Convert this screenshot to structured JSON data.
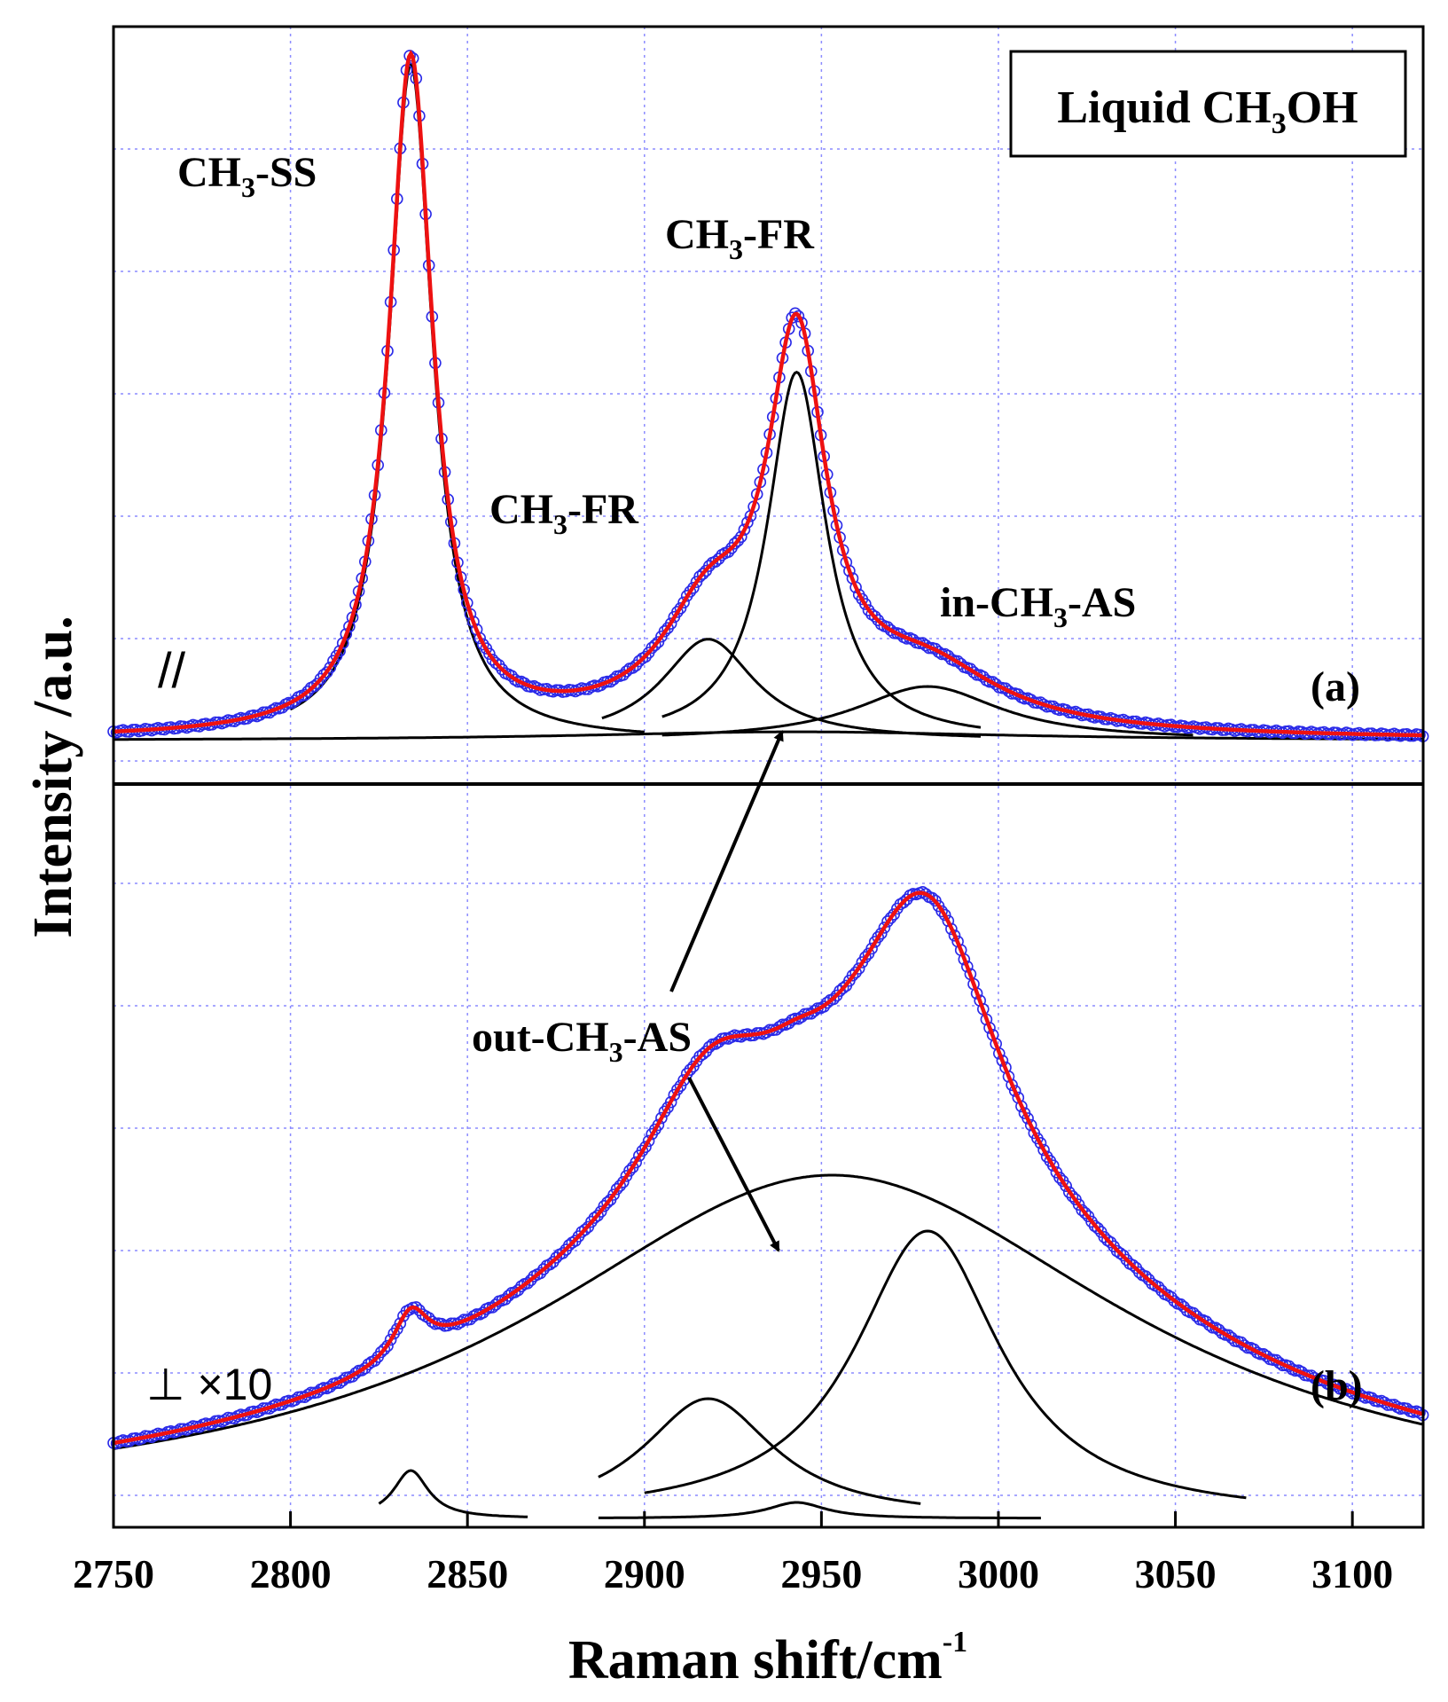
{
  "chart_data": {
    "type": "line",
    "title": "Liquid CH3OH",
    "title_main": "Liquid CH",
    "title_sub": "3",
    "title_end": "OH",
    "xlabel": "Raman shift/cm",
    "xlabel_sup": "-1",
    "ylabel": "Intensity /a.u.",
    "xlim": [
      2750,
      3120
    ],
    "x_ticks": [
      2750,
      2800,
      2850,
      2900,
      2950,
      3000,
      3050,
      3100
    ],
    "grid": true,
    "panels": [
      {
        "id": "a",
        "label": "(a)",
        "polarization_label": "//",
        "peaks": [
          {
            "name": "CH3-SS",
            "center": 2834,
            "height": 1.0,
            "fwhm": 15,
            "range": [
              2800,
              2900
            ]
          },
          {
            "name": "CH3-FR",
            "center": 2918,
            "height": 0.15,
            "fwhm": 32,
            "range": [
              2888,
              2995
            ]
          },
          {
            "name": "CH3-FR",
            "center": 2943,
            "height": 0.545,
            "fwhm": 20,
            "range": [
              2905,
              2995
            ]
          },
          {
            "name": "in-CH3-AS",
            "center": 2980,
            "height": 0.08,
            "fwhm": 50,
            "range": [
              2905,
              3055
            ]
          },
          {
            "name": "out-CH3-AS",
            "center": 2943,
            "height": 0.013,
            "fwhm": 150,
            "range": [
              2750,
              3120
            ]
          }
        ],
        "series": [
          {
            "name": "experimental",
            "style": "blue open circles"
          },
          {
            "name": "fit",
            "style": "red line"
          },
          {
            "name": "components",
            "style": "black lines"
          }
        ]
      },
      {
        "id": "b",
        "label": "(b)",
        "polarization_label": "⊥ ×10",
        "peaks": [
          {
            "name": "CH3-SS",
            "center": 2834,
            "height": 0.06,
            "fwhm": 12,
            "range": [
              2825,
              2867
            ]
          },
          {
            "name": "CH3-FR",
            "center": 2918,
            "height": 0.15,
            "fwhm": 45,
            "range": [
              2887,
              2978
            ]
          },
          {
            "name": "CH3-FR",
            "center": 2943,
            "height": 0.02,
            "fwhm": 20,
            "range": [
              2887,
              3012
            ]
          },
          {
            "name": "in-CH3-AS",
            "center": 2980,
            "height": 0.36,
            "fwhm": 50,
            "range": [
              2900,
              3070
            ]
          },
          {
            "name": "out-CH3-AS",
            "center": 2953,
            "height": 0.43,
            "fwhm": 205,
            "range": [
              2750,
              3120
            ]
          }
        ],
        "series": [
          {
            "name": "experimental",
            "style": "blue open circles"
          },
          {
            "name": "fit",
            "style": "red line"
          },
          {
            "name": "components",
            "style": "black lines"
          }
        ]
      }
    ],
    "annotations": [
      {
        "text": "CH3-SS",
        "main": "CH",
        "sub": "3",
        "rest": "-SS"
      },
      {
        "text": "CH3-FR",
        "main": "CH",
        "sub": "3",
        "rest": "-FR"
      },
      {
        "text": "CH3-FR",
        "main": "CH",
        "sub": "3",
        "rest": "-FR"
      },
      {
        "text": "in-CH3-AS",
        "main": "in-CH",
        "sub": "3",
        "rest": "-AS"
      },
      {
        "text": "out-CH3-AS",
        "main": "out-CH",
        "sub": "3",
        "rest": "-AS"
      }
    ]
  },
  "colors": {
    "data_points": "#2a2ae8",
    "fit_line": "#ee1111",
    "component_lines": "#000000",
    "grid": "#8c8cff"
  }
}
